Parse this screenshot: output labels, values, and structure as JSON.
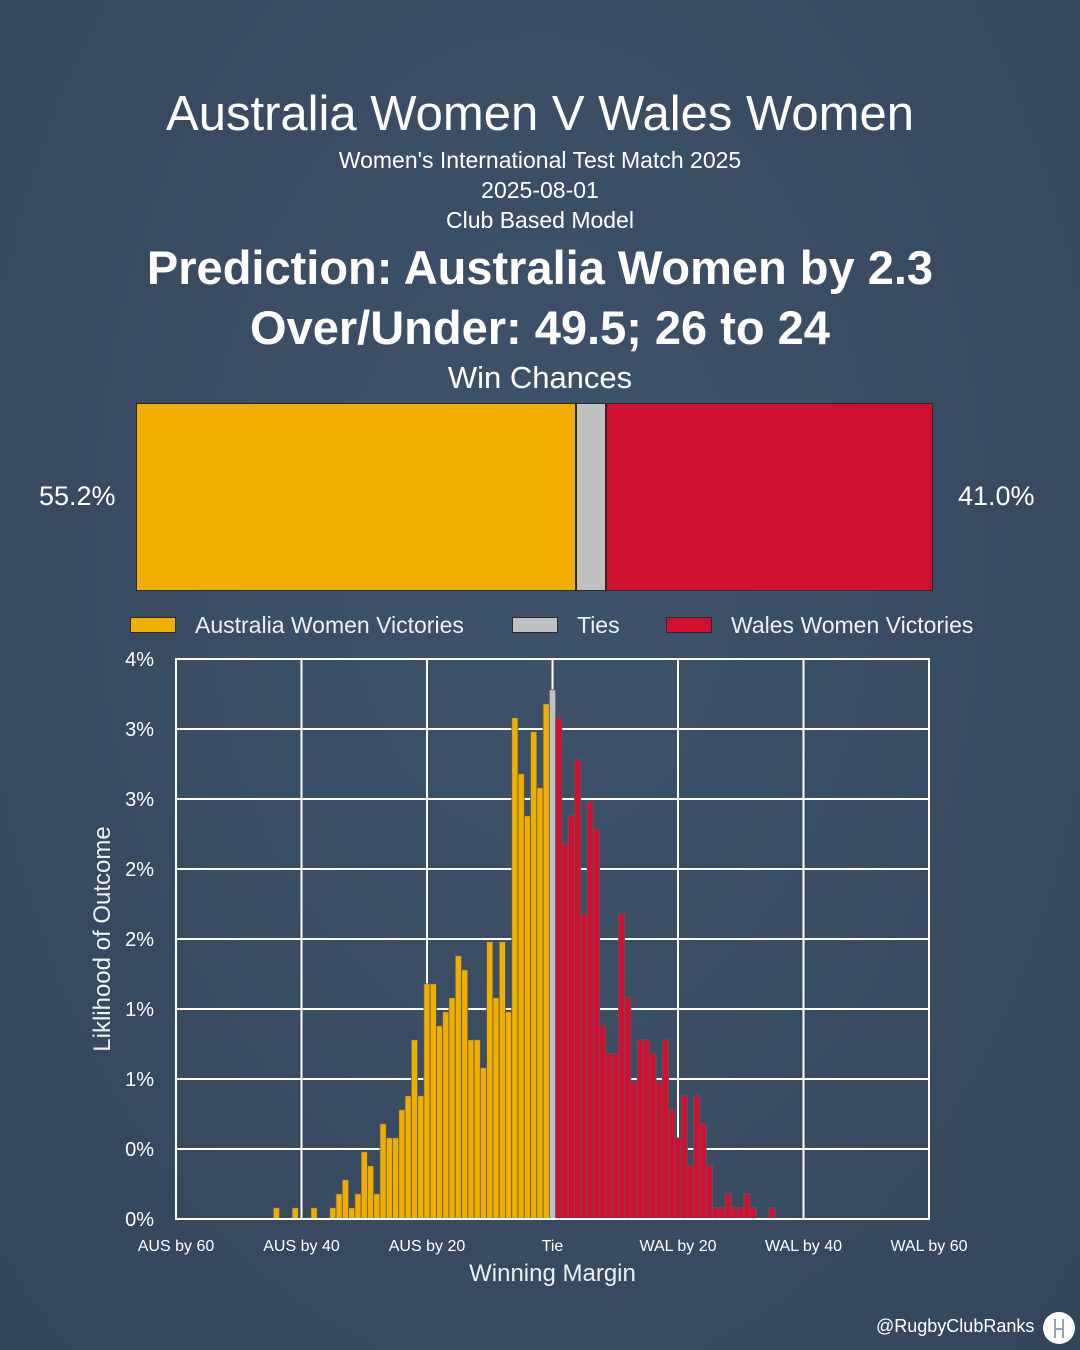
{
  "header": {
    "title": "Australia Women V Wales Women",
    "competition": "Women's International Test Match 2025",
    "date": "2025-08-01",
    "model": "Club Based Model",
    "prediction": "Prediction: Australia Women by 2.3",
    "over_under": "Over/Under: 49.5; 26 to 24",
    "win_chances_label": "Win Chances"
  },
  "win_chances": {
    "aus_pct_label": "55.2%",
    "wal_pct_label": "41.0%",
    "aus": 0.552,
    "tie": 0.038,
    "wal": 0.41
  },
  "legend": {
    "aus": "Australia Women Victories",
    "tie": "Ties",
    "wal": "Wales Women Victories"
  },
  "colors": {
    "background": "#3a5068",
    "aus": "#efae00",
    "tie": "#c0c0c0",
    "wal": "#d01030",
    "grid": "#ffffff",
    "bar_edge": "#5a5a5a"
  },
  "chart_data": {
    "type": "bar",
    "xlabel": "Winning Margin",
    "ylabel": "Liklihood of Outcome",
    "xlim": [
      -60,
      60
    ],
    "ylim": [
      0,
      0.04
    ],
    "x_ticks": [
      {
        "value": -60,
        "label": "AUS by 60"
      },
      {
        "value": -40,
        "label": "AUS by 40"
      },
      {
        "value": -20,
        "label": "AUS by 20"
      },
      {
        "value": 0,
        "label": "Tie"
      },
      {
        "value": 20,
        "label": "WAL by 20"
      },
      {
        "value": 40,
        "label": "WAL by 40"
      },
      {
        "value": 60,
        "label": "WAL by 60"
      }
    ],
    "y_ticks": [
      {
        "value": 0,
        "label": "0%"
      },
      {
        "value": 0.005,
        "label": "0%"
      },
      {
        "value": 0.01,
        "label": "1%"
      },
      {
        "value": 0.015,
        "label": "1%"
      },
      {
        "value": 0.02,
        "label": "2%"
      },
      {
        "value": 0.025,
        "label": "2%"
      },
      {
        "value": 0.03,
        "label": "3%"
      },
      {
        "value": 0.035,
        "label": "3%"
      },
      {
        "value": 0.04,
        "label": "4%"
      }
    ],
    "grid": true,
    "legend_position": "top",
    "series": [
      {
        "name": "Australia Women Victories",
        "x": [
          -44,
          -41,
          -38,
          -35,
          -34,
          -33,
          -32,
          -31,
          -30,
          -29,
          -28,
          -27,
          -26,
          -25,
          -24,
          -23,
          -22,
          -21,
          -20,
          -19,
          -18,
          -17,
          -16,
          -15,
          -14,
          -13,
          -12,
          -11,
          -10,
          -9,
          -8,
          -7,
          -6,
          -5,
          -4,
          -3,
          -2,
          -1
        ],
        "values": [
          0.0008,
          0.0008,
          0.0008,
          0.0008,
          0.0018,
          0.0028,
          0.0008,
          0.0018,
          0.0048,
          0.0038,
          0.0018,
          0.0068,
          0.0058,
          0.0058,
          0.0078,
          0.0088,
          0.0128,
          0.0088,
          0.0168,
          0.0168,
          0.0138,
          0.0148,
          0.0158,
          0.0188,
          0.0178,
          0.0128,
          0.0128,
          0.0108,
          0.0198,
          0.0158,
          0.0198,
          0.0148,
          0.0358,
          0.0318,
          0.0288,
          0.0348,
          0.0308,
          0.0368
        ]
      },
      {
        "name": "Ties",
        "x": [
          0
        ],
        "values": [
          0.0378
        ]
      },
      {
        "name": "Wales Women Victories",
        "x": [
          1,
          2,
          3,
          4,
          5,
          6,
          7,
          8,
          9,
          10,
          11,
          12,
          13,
          14,
          15,
          16,
          17,
          18,
          19,
          20,
          21,
          22,
          23,
          24,
          25,
          26,
          27,
          28,
          29,
          30,
          31,
          32,
          35
        ],
        "values": [
          0.0358,
          0.0268,
          0.0288,
          0.0328,
          0.0218,
          0.0298,
          0.0278,
          0.0138,
          0.0118,
          0.0118,
          0.0218,
          0.0158,
          0.0098,
          0.0128,
          0.0128,
          0.0118,
          0.0098,
          0.0128,
          0.0078,
          0.0058,
          0.0088,
          0.0038,
          0.0088,
          0.0068,
          0.0038,
          0.0008,
          0.0008,
          0.0018,
          0.0008,
          0.0008,
          0.0018,
          0.0008,
          0.0008
        ]
      }
    ]
  },
  "footer": {
    "credit": "@RugbyClubRanks"
  }
}
